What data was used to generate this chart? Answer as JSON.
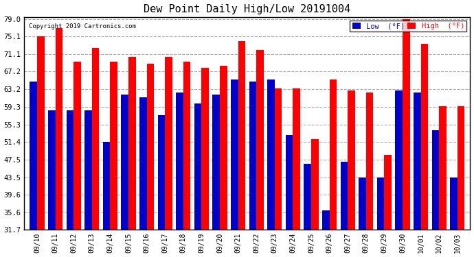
{
  "title": "Dew Point Daily High/Low 20191004",
  "copyright": "Copyright 2019 Cartronics.com",
  "labels": [
    "09/10",
    "09/11",
    "09/12",
    "09/13",
    "09/14",
    "09/15",
    "09/16",
    "09/17",
    "09/18",
    "09/19",
    "09/20",
    "09/21",
    "09/22",
    "09/23",
    "09/24",
    "09/25",
    "09/26",
    "09/27",
    "09/28",
    "09/29",
    "09/30",
    "10/01",
    "10/02",
    "10/03"
  ],
  "high": [
    75.1,
    77.0,
    69.5,
    72.5,
    69.5,
    70.5,
    69.0,
    70.5,
    69.5,
    68.0,
    68.5,
    74.0,
    72.0,
    63.5,
    63.5,
    52.0,
    65.5,
    63.0,
    62.5,
    48.5,
    79.0,
    73.5,
    59.5,
    59.5
  ],
  "low": [
    65.0,
    58.5,
    58.5,
    58.5,
    51.5,
    62.0,
    61.5,
    57.5,
    62.5,
    60.0,
    62.0,
    65.5,
    65.0,
    65.5,
    53.0,
    46.5,
    36.0,
    47.0,
    43.5,
    43.5,
    63.0,
    62.5,
    54.0,
    43.5
  ],
  "yticks": [
    31.7,
    35.6,
    39.6,
    43.5,
    47.5,
    51.4,
    55.3,
    59.3,
    63.2,
    67.2,
    71.1,
    75.1,
    79.0
  ],
  "ymin": 31.7,
  "ymax": 79.0,
  "high_color": "#FF0000",
  "low_color": "#0000CC",
  "bg_color": "#FFFFFF",
  "grid_color": "#AAAAAA",
  "bar_width": 0.4
}
